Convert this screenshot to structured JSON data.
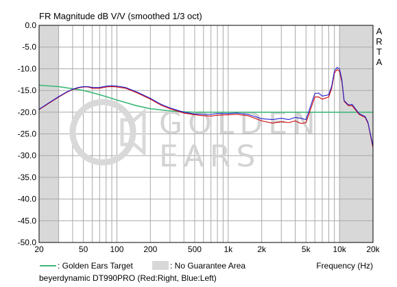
{
  "chart_data": {
    "type": "line",
    "title": "FR Magnitude dB V/V (smoothed 1/3 oct)",
    "side_label": [
      "A",
      "R",
      "T",
      "A"
    ],
    "xlabel": "Frequency (Hz)",
    "x_scale": "log",
    "xlim": [
      20,
      20000
    ],
    "ylim": [
      -50,
      0
    ],
    "y_ticks": [
      0,
      -5,
      -10,
      -15,
      -20,
      -25,
      -30,
      -35,
      -40,
      -45,
      -50
    ],
    "y_tick_labels": [
      "0.0",
      "-5.0",
      "-10.0",
      "-15.0",
      "-20.0",
      "-25.0",
      "-30.0",
      "-35.0",
      "-40.0",
      "-45.0",
      "-50.0"
    ],
    "x_ticks": [
      20,
      50,
      100,
      200,
      500,
      1000,
      2000,
      5000,
      10000,
      20000
    ],
    "x_tick_labels": [
      "20",
      "50",
      "100",
      "200",
      "500",
      "1k",
      "2k",
      "5k",
      "10k",
      "20k"
    ],
    "grid": true,
    "no_guarantee_ranges": [
      [
        20,
        30
      ],
      [
        10000,
        20000
      ]
    ],
    "series": [
      {
        "name": "Red:Right",
        "color": "#d00000",
        "x": [
          20,
          25,
          30,
          35,
          40,
          45,
          50,
          55,
          60,
          70,
          80,
          90,
          100,
          120,
          150,
          200,
          250,
          300,
          400,
          500,
          600,
          700,
          800,
          1000,
          1200,
          1500,
          2000,
          2500,
          3000,
          3500,
          4000,
          4500,
          5000,
          6000,
          6500,
          7000,
          8000,
          8500,
          9000,
          9500,
          10000,
          10500,
          11000,
          12000,
          13000,
          15000,
          17000,
          18000,
          20000
        ],
        "y": [
          -19.4,
          -17.8,
          -16.5,
          -15.5,
          -14.8,
          -14.4,
          -14.2,
          -14.2,
          -14.5,
          -14.5,
          -14.2,
          -14.1,
          -14.2,
          -14.5,
          -15.5,
          -17.0,
          -18.4,
          -19.2,
          -20.2,
          -20.6,
          -20.8,
          -20.9,
          -20.7,
          -20.6,
          -20.5,
          -20.8,
          -22.0,
          -22.5,
          -22.2,
          -22.4,
          -22.0,
          -22.6,
          -22.4,
          -16.5,
          -16.5,
          -17.0,
          -16.5,
          -14.5,
          -11.0,
          -10.2,
          -10.5,
          -13.0,
          -17.5,
          -18.5,
          -18.5,
          -20.5,
          -21.2,
          -22.5,
          -28.2
        ]
      },
      {
        "name": "Blue:Left",
        "color": "#2020d0",
        "x": [
          20,
          25,
          30,
          35,
          40,
          45,
          50,
          55,
          60,
          70,
          80,
          90,
          100,
          120,
          150,
          200,
          250,
          300,
          400,
          500,
          600,
          700,
          800,
          1000,
          1200,
          1500,
          2000,
          2500,
          3000,
          3500,
          4000,
          4500,
          5000,
          6000,
          6500,
          7000,
          8000,
          8500,
          9000,
          9500,
          10000,
          10500,
          11000,
          12000,
          13000,
          15000,
          17000,
          18000,
          20000
        ],
        "y": [
          -19.3,
          -17.7,
          -16.4,
          -15.4,
          -14.7,
          -14.3,
          -14.1,
          -14.1,
          -14.3,
          -14.3,
          -14.0,
          -13.9,
          -14.0,
          -14.3,
          -15.3,
          -16.8,
          -18.2,
          -19.0,
          -20.0,
          -20.4,
          -20.5,
          -20.5,
          -20.3,
          -20.3,
          -20.2,
          -20.5,
          -21.5,
          -21.7,
          -21.4,
          -21.7,
          -21.2,
          -21.4,
          -21.7,
          -15.7,
          -15.6,
          -16.3,
          -16.0,
          -14.0,
          -10.5,
          -9.7,
          -10.0,
          -12.5,
          -17.3,
          -18.3,
          -18.2,
          -20.3,
          -21.0,
          -22.3,
          -27.8
        ]
      },
      {
        "name": "Golden Ears Target",
        "color": "#3cb878",
        "x": [
          20,
          30,
          40,
          50,
          60,
          80,
          100,
          150,
          200,
          300,
          400,
          500,
          20000
        ],
        "y": [
          -13.8,
          -14.1,
          -14.6,
          -15.0,
          -15.5,
          -16.4,
          -17.2,
          -18.5,
          -19.2,
          -19.7,
          -19.9,
          -20.0,
          -20.0
        ]
      }
    ],
    "legend": {
      "target_label": ": Golden Ears Target",
      "area_label": ": No Guarantee Area"
    },
    "caption": "beyerdynamic DT990PRO (Red:Right, Blue:Left)",
    "watermark": {
      "top": "GOLDEN",
      "bottom": "EARS"
    }
  }
}
